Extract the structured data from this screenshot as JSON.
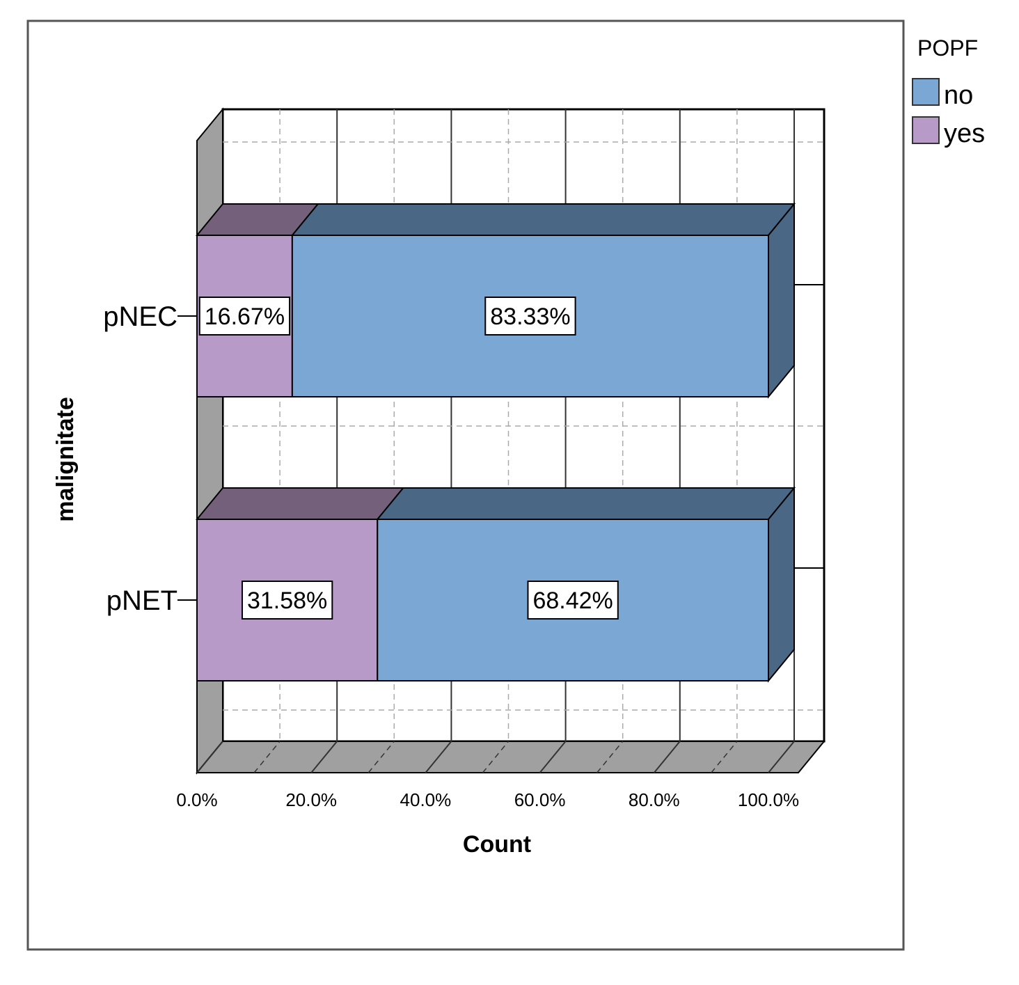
{
  "chart_data": {
    "type": "bar",
    "orientation": "horizontal",
    "stacked": true,
    "three_d": true,
    "categories": [
      "pNEC",
      "pNET"
    ],
    "series": [
      {
        "name": "yes",
        "values": [
          16.67,
          31.58
        ],
        "labels": [
          "16.67%",
          "31.58%"
        ]
      },
      {
        "name": "no",
        "values": [
          83.33,
          68.42
        ],
        "labels": [
          "83.33%",
          "68.42%"
        ]
      }
    ],
    "xlabel": "Count",
    "ylabel": "malignitate",
    "xlim": [
      0,
      100
    ],
    "x_ticks": [
      "0.0%",
      "20.0%",
      "40.0%",
      "60.0%",
      "80.0%",
      "100.0%"
    ],
    "legend": {
      "title": "POPF",
      "entries": [
        "no",
        "yes"
      ],
      "placement": "right"
    },
    "grid": true
  },
  "colors": {
    "no": "#7ba7d4",
    "no_shade": "#4a6785",
    "yes": "#b89ac8",
    "yes_shade": "#74607a",
    "floor": "#a0a0a0"
  }
}
